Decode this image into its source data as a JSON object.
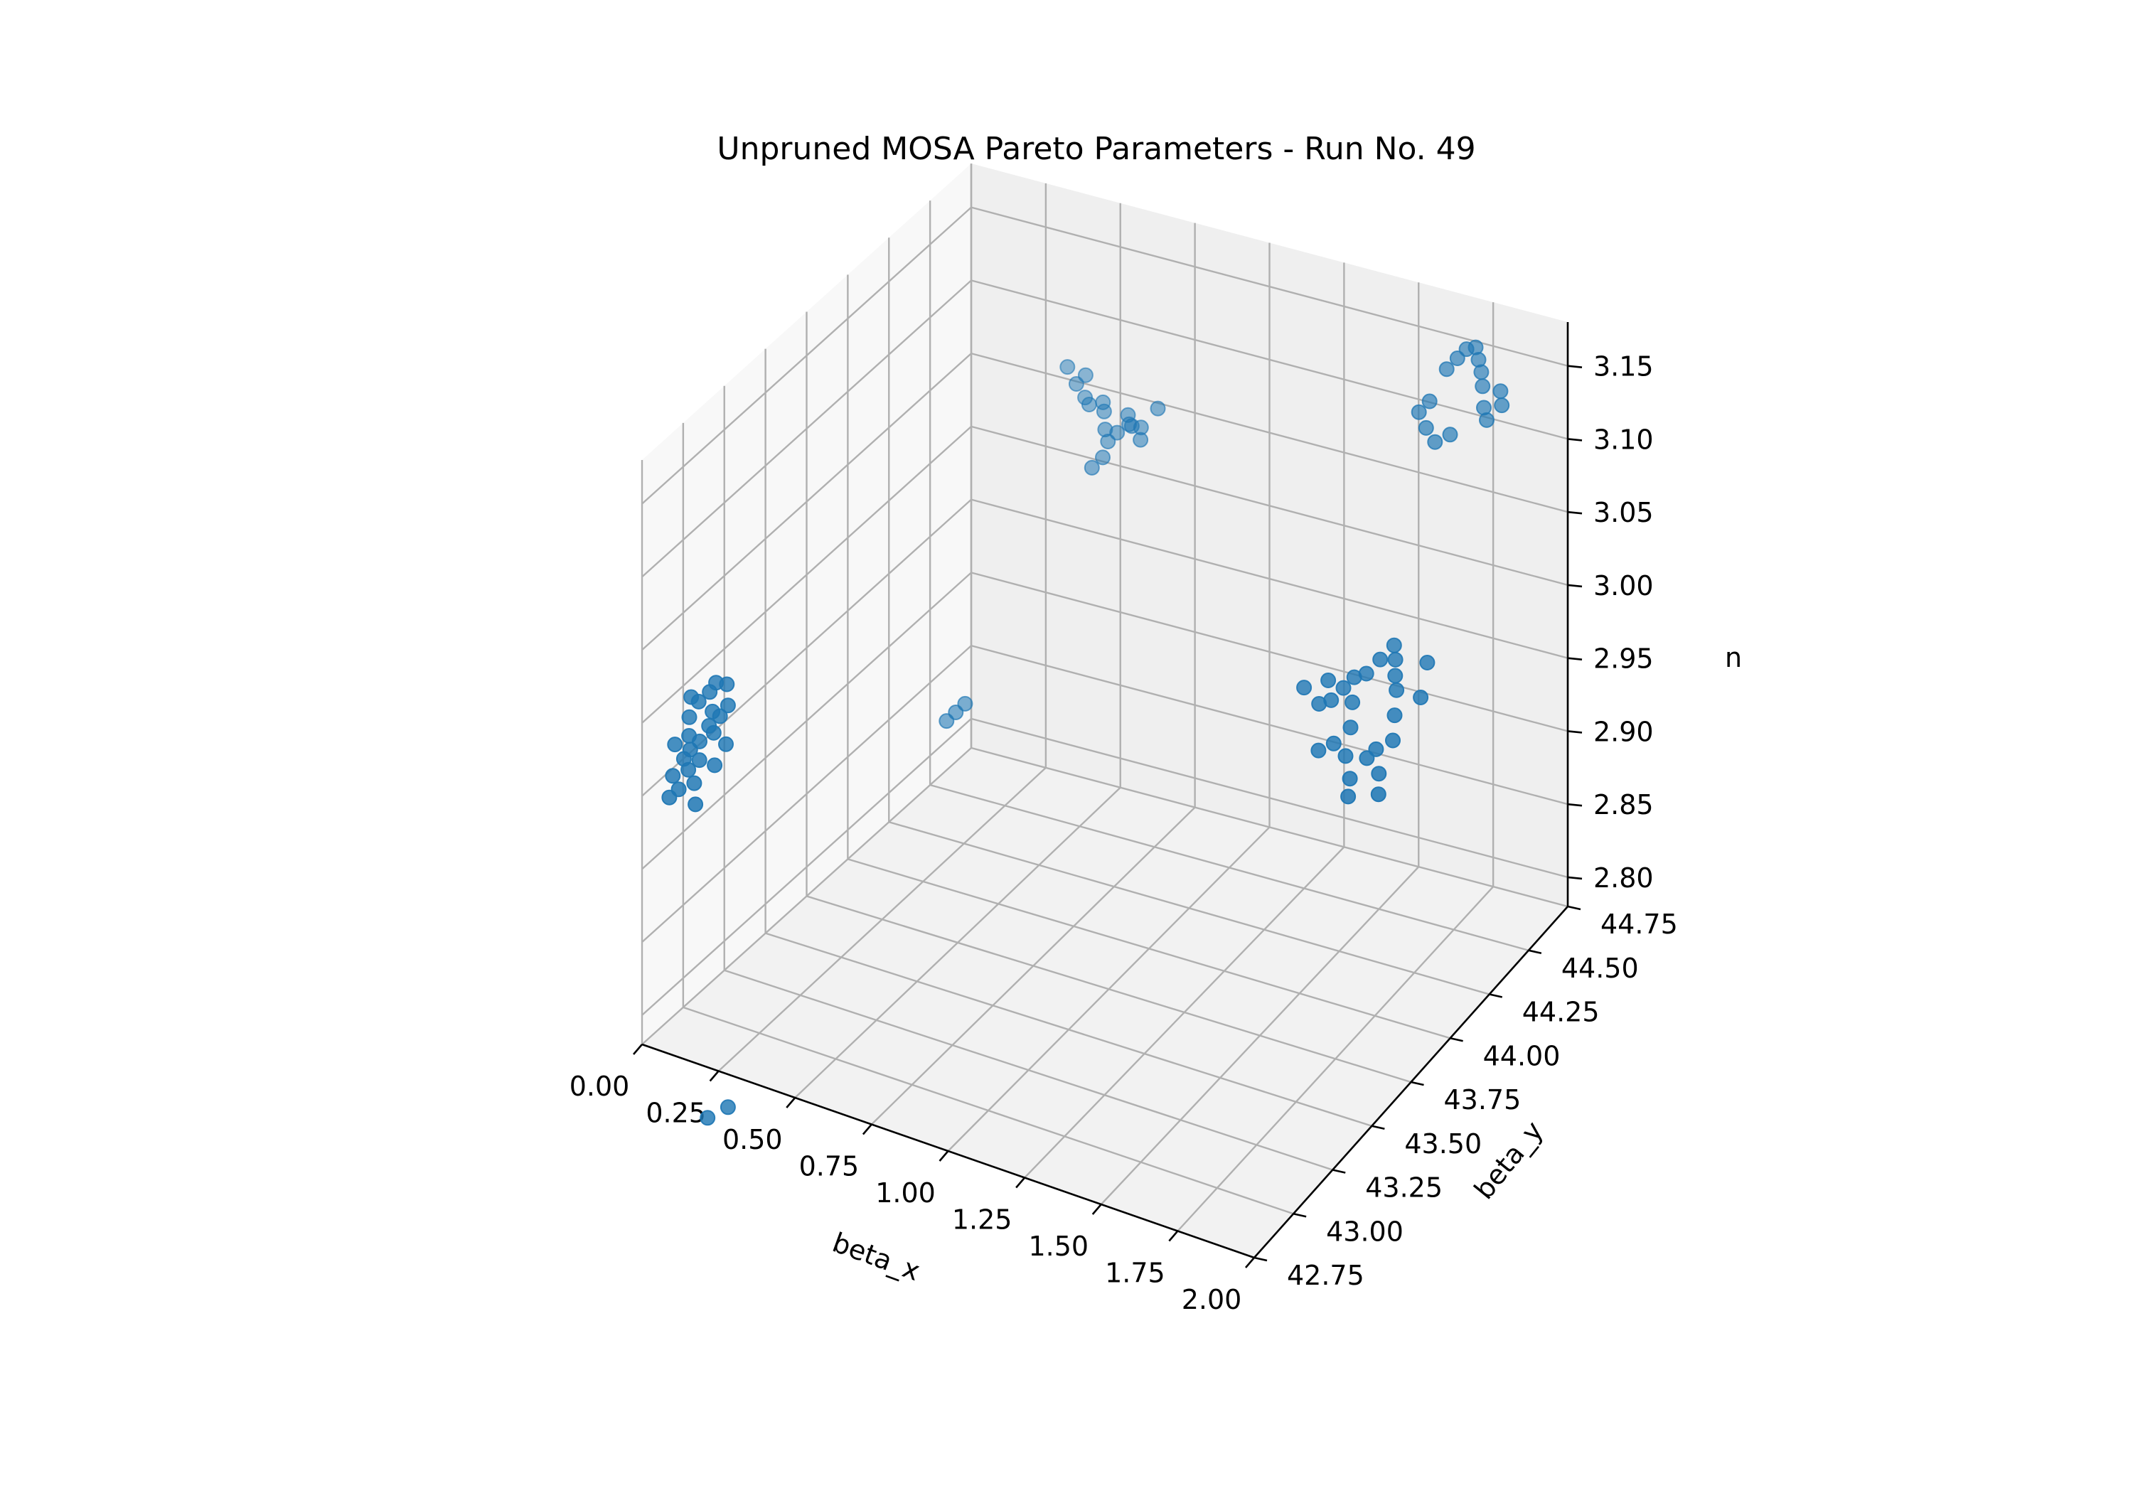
{
  "chart_data": {
    "type": "scatter",
    "title": "Unpruned MOSA Pareto Parameters - Run No. 49",
    "xlabel": "beta_x",
    "ylabel": "beta_y",
    "zlabel": "n",
    "projection": "3d",
    "xlim": [
      0.0,
      2.0
    ],
    "ylim": [
      42.75,
      44.75
    ],
    "zlim": [
      2.78,
      3.18
    ],
    "x_ticks": [
      "0.00",
      "0.25",
      "0.50",
      "0.75",
      "1.00",
      "1.25",
      "1.50",
      "1.75",
      "2.00"
    ],
    "y_ticks": [
      "42.75",
      "43.00",
      "43.25",
      "43.50",
      "43.75",
      "44.00",
      "44.25",
      "44.50",
      "44.75"
    ],
    "z_ticks": [
      "2.80",
      "2.85",
      "2.90",
      "2.95",
      "3.00",
      "3.05",
      "3.10",
      "3.15"
    ],
    "grid": true,
    "marker_color": "#1f77b4",
    "clusters": [
      {
        "description_center": [
          1.75,
          44.5,
          3.155
        ],
        "points": [
          [
            1.7,
            44.55,
            3.155
          ],
          [
            1.72,
            44.58,
            3.16
          ],
          [
            1.74,
            44.6,
            3.165
          ],
          [
            1.76,
            44.62,
            3.165
          ],
          [
            1.78,
            44.6,
            3.16
          ],
          [
            1.8,
            44.58,
            3.155
          ],
          [
            1.82,
            44.55,
            3.15
          ],
          [
            1.84,
            44.52,
            3.14
          ],
          [
            1.86,
            44.5,
            3.135
          ],
          [
            1.68,
            44.48,
            3.14
          ],
          [
            1.66,
            44.45,
            3.135
          ],
          [
            1.7,
            44.42,
            3.13
          ],
          [
            1.74,
            44.4,
            3.125
          ],
          [
            1.78,
            44.42,
            3.13
          ],
          [
            1.88,
            44.55,
            3.15
          ],
          [
            1.9,
            44.52,
            3.145
          ]
        ]
      },
      {
        "description_center": [
          1.85,
          43.8,
          3.03
        ],
        "points": [
          [
            1.7,
            43.8,
            3.03
          ],
          [
            1.72,
            43.78,
            3.02
          ],
          [
            1.74,
            43.82,
            3.025
          ],
          [
            1.76,
            43.85,
            3.03
          ],
          [
            1.78,
            43.8,
            3.02
          ],
          [
            1.8,
            43.85,
            3.035
          ],
          [
            1.82,
            43.9,
            3.04
          ],
          [
            1.84,
            43.95,
            3.045
          ],
          [
            1.86,
            43.92,
            3.04
          ],
          [
            1.88,
            43.88,
            3.035
          ],
          [
            1.9,
            43.85,
            3.03
          ],
          [
            1.92,
            43.8,
            3.02
          ],
          [
            1.94,
            43.75,
            3.01
          ],
          [
            1.88,
            43.7,
            3.0
          ],
          [
            1.85,
            43.65,
            2.99
          ],
          [
            1.82,
            43.68,
            3.0
          ],
          [
            1.9,
            43.72,
            3.005
          ],
          [
            1.93,
            43.68,
            2.995
          ],
          [
            1.96,
            43.62,
            2.99
          ],
          [
            1.8,
            43.75,
            3.01
          ],
          [
            1.76,
            43.72,
            3.0
          ],
          [
            1.72,
            43.7,
            2.995
          ],
          [
            1.68,
            43.78,
            3.015
          ],
          [
            1.62,
            43.8,
            3.02
          ],
          [
            1.98,
            43.85,
            3.03
          ],
          [
            1.95,
            43.95,
            3.04
          ],
          [
            1.87,
            43.6,
            2.985
          ]
        ]
      },
      {
        "description_center": [
          0.45,
          44.7,
          3.06
        ],
        "points": [
          [
            0.35,
            44.7,
            3.065
          ],
          [
            0.38,
            44.7,
            3.055
          ],
          [
            0.4,
            44.72,
            3.06
          ],
          [
            0.42,
            44.68,
            3.05
          ],
          [
            0.45,
            44.65,
            3.05
          ],
          [
            0.48,
            44.68,
            3.05
          ],
          [
            0.5,
            44.65,
            3.048
          ],
          [
            0.52,
            44.62,
            3.04
          ],
          [
            0.54,
            44.6,
            3.035
          ],
          [
            0.56,
            44.62,
            3.04
          ],
          [
            0.58,
            44.65,
            3.05
          ],
          [
            0.6,
            44.62,
            3.048
          ],
          [
            0.62,
            44.6,
            3.05
          ],
          [
            0.64,
            44.62,
            3.048
          ],
          [
            0.66,
            44.58,
            3.045
          ],
          [
            0.68,
            44.65,
            3.06
          ],
          [
            0.55,
            44.55,
            3.03
          ],
          [
            0.53,
            44.52,
            3.025
          ]
        ]
      },
      {
        "description_center": [
          0.05,
          43.0,
          2.98
        ],
        "points": [
          [
            0.02,
            43.0,
            2.98
          ],
          [
            0.04,
            43.02,
            2.99
          ],
          [
            0.06,
            43.05,
            2.995
          ],
          [
            0.08,
            43.03,
            2.985
          ],
          [
            0.1,
            43.0,
            2.975
          ],
          [
            0.03,
            42.98,
            2.97
          ],
          [
            0.05,
            42.95,
            2.965
          ],
          [
            0.07,
            42.97,
            2.97
          ],
          [
            0.09,
            42.99,
            2.98
          ],
          [
            0.11,
            43.02,
            2.985
          ],
          [
            0.01,
            43.03,
            2.99
          ],
          [
            0.04,
            42.93,
            2.96
          ],
          [
            0.06,
            42.92,
            2.955
          ],
          [
            0.08,
            42.95,
            2.96
          ],
          [
            0.12,
            43.05,
            2.99
          ],
          [
            0.02,
            42.9,
            2.95
          ],
          [
            0.05,
            42.88,
            2.945
          ],
          [
            0.09,
            42.9,
            2.95
          ],
          [
            0.13,
            42.95,
            2.96
          ],
          [
            0.0,
            42.95,
            2.965
          ],
          [
            0.07,
            43.07,
            3.0
          ],
          [
            0.1,
            43.08,
            3.0
          ],
          [
            0.14,
            43.0,
            2.97
          ],
          [
            0.03,
            42.86,
            2.94
          ],
          [
            0.11,
            42.87,
            2.94
          ]
        ]
      },
      {
        "description_center": [
          0.25,
          44.2,
          2.87
        ],
        "points": [
          [
            0.23,
            44.18,
            2.87
          ],
          [
            0.25,
            44.2,
            2.875
          ],
          [
            0.27,
            44.22,
            2.88
          ]
        ]
      },
      {
        "description_center": [
          0.1,
          43.05,
          2.7
        ],
        "points": [
          [
            0.08,
            43.0,
            2.71
          ],
          [
            0.12,
            43.05,
            2.715
          ]
        ]
      }
    ]
  }
}
